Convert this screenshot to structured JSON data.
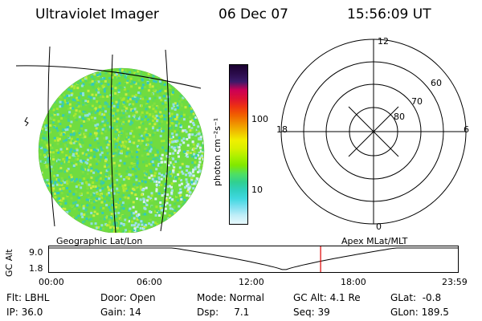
{
  "header": {
    "title": "Ultraviolet Imager",
    "date": "06 Dec 07",
    "time": "15:56:09 UT"
  },
  "colorbar": {
    "unit_label": "photon cm⁻²s⁻¹",
    "ticks": [
      "100",
      "10"
    ],
    "colors": [
      "#1a0030",
      "#2a0b4a",
      "#3a1a6a",
      "#cc0055",
      "#dd1133",
      "#ee3311",
      "#f06000",
      "#f09000",
      "#f0c000",
      "#f0f000",
      "#d8f000",
      "#aaf000",
      "#80e800",
      "#50e060",
      "#30d090",
      "#30d0c0",
      "#40d8e0",
      "#80e0f0",
      "#c0eef8",
      "#e8f8fc"
    ]
  },
  "polar": {
    "mlt_labels": {
      "top": "12",
      "left": "18",
      "right": "6",
      "bottom": "0"
    },
    "lat_labels": [
      "60",
      "70",
      "80"
    ]
  },
  "timeline": {
    "left_label": "Geographic Lat/Lon",
    "right_label": "Apex MLat/MLT",
    "y_axis_label": "GC Alt",
    "y_ticks": [
      "9.0",
      "1.8"
    ],
    "x_ticks": [
      "00:00",
      "06:00",
      "12:00",
      "18:00",
      "23:59"
    ],
    "marker_color": "#dd0000"
  },
  "status": {
    "flt": "Flt: LBHL",
    "ip": "IP: 36.0",
    "door": "Door: Open",
    "gain": "Gain: 14",
    "mode": "Mode: Normal",
    "dsp": "Dsp:     7.1",
    "gc_alt": "GC Alt: 4.1 Re",
    "seq": "Seq: 39",
    "glat": "GLat:  -0.8",
    "glon": "GLon: 189.5"
  }
}
